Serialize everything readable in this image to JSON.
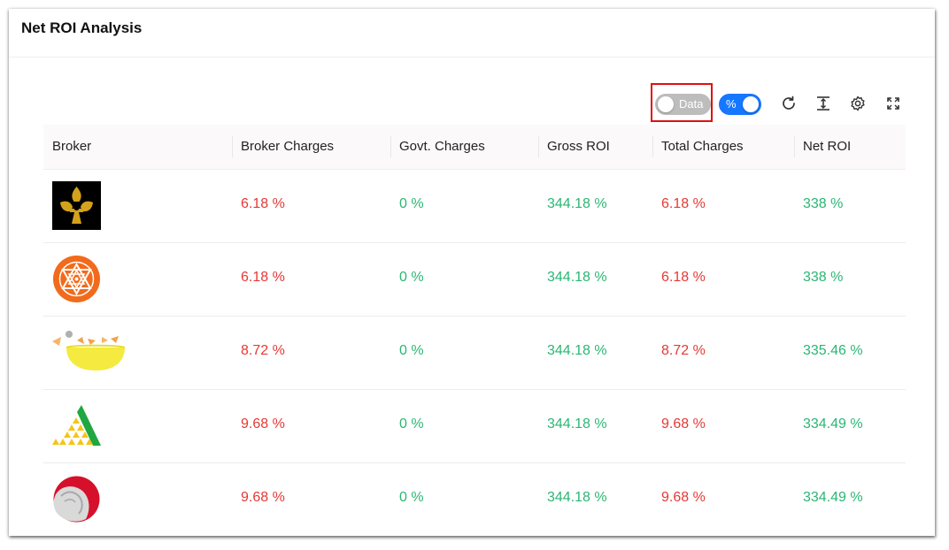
{
  "title": "Net ROI Analysis",
  "toolbar": {
    "data_toggle_label": "Data",
    "percent_toggle_label": "%",
    "icons": [
      "reload-icon",
      "column-height-icon",
      "setting-icon",
      "fullscreen-icon"
    ]
  },
  "table": {
    "columns": [
      "Broker",
      "Broker Charges",
      "Govt. Charges",
      "Gross ROI",
      "Total Charges",
      "Net ROI"
    ],
    "rows": [
      {
        "logo": "fleur-de-lis-logo",
        "broker_charges": "6.18 %",
        "govt_charges": "0 %",
        "gross_roi": "344.18 %",
        "total_charges": "6.18 %",
        "net_roi": "338 %"
      },
      {
        "logo": "sri-yantra-logo",
        "broker_charges": "6.18 %",
        "govt_charges": "0 %",
        "gross_roi": "344.18 %",
        "total_charges": "6.18 %",
        "net_roi": "338 %"
      },
      {
        "logo": "yellow-bowl-logo",
        "broker_charges": "8.72 %",
        "govt_charges": "0 %",
        "gross_roi": "344.18 %",
        "total_charges": "8.72 %",
        "net_roi": "335.46 %"
      },
      {
        "logo": "triangle-logo",
        "broker_charges": "9.68 %",
        "govt_charges": "0 %",
        "gross_roi": "344.18 %",
        "total_charges": "9.68 %",
        "net_roi": "334.49 %"
      },
      {
        "logo": "coin-logo",
        "broker_charges": "9.68 %",
        "govt_charges": "0 %",
        "gross_roi": "344.18 %",
        "total_charges": "9.68 %",
        "net_roi": "334.49 %"
      }
    ]
  },
  "colors": {
    "negative": "#e53935",
    "positive": "#2bb673",
    "toggle_on": "#1677ff",
    "toggle_off": "#bdbdbd",
    "highlight": "#e01010"
  }
}
